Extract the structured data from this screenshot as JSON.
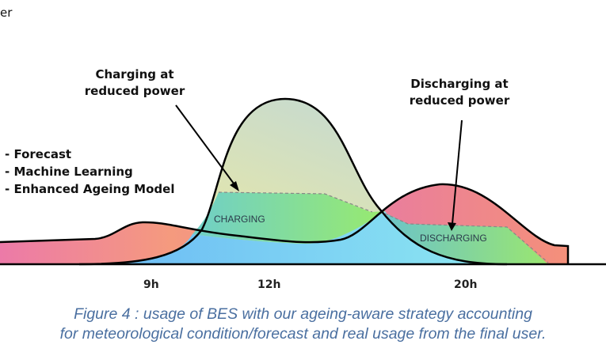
{
  "top_left_fragment": "er",
  "annotations": {
    "charging_reduced": [
      "Charging at",
      "reduced power"
    ],
    "discharging_reduced": [
      "Discharging at",
      "reduced power"
    ]
  },
  "strategy_list": [
    "- Forecast",
    "- Machine Learning",
    "- Enhanced Ageing Model"
  ],
  "region_labels": {
    "charging": "CHARGING",
    "discharging": "DISCHARGING"
  },
  "x_ticks": [
    "9h",
    "12h",
    "20h"
  ],
  "caption": [
    "Figure 4 : usage of BES with our ageing-aware strategy accounting",
    "for meteorological condition/forecast and real usage from the final user."
  ],
  "colors": {
    "caption": "#4a6fa0",
    "consumption": "#f08a8a",
    "production_top": "#e8e6a8",
    "self_consumption": "#7fcff0",
    "charging": "#8ee07a"
  }
}
